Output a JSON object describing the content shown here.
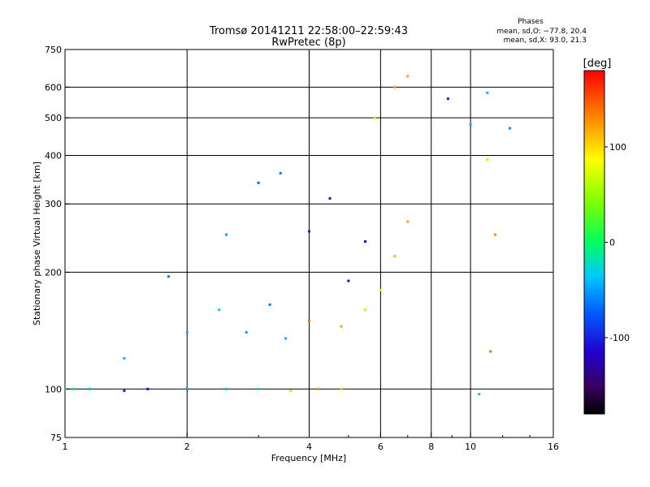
{
  "chart_data": {
    "type": "scatter",
    "title": "Tromsø 20141211 22:58:00–22:59:43",
    "subtitle": "RwPretec (8p)",
    "xlabel": "Frequency [MHz]",
    "ylabel": "Stationary phase Virtual Height [km]",
    "x_scale": "log",
    "y_scale": "log",
    "xlim": [
      1,
      16
    ],
    "ylim": [
      75,
      750
    ],
    "x_ticks": [
      1,
      2,
      4,
      6,
      8,
      10,
      16
    ],
    "y_ticks": [
      75,
      100,
      200,
      300,
      400,
      500,
      600,
      750
    ],
    "x_gridlines": [
      2,
      4,
      6,
      8,
      10
    ],
    "y_gridlines": [
      100,
      200,
      300,
      400,
      500,
      600
    ],
    "grid": true,
    "phase_stats": {
      "heading": "Phases",
      "line_o": "mean, sd,O: −77.8, 20.4",
      "line_x": "mean, sd,X:  93.0, 21.3"
    },
    "colorbar": {
      "label": "[deg]",
      "range": [
        -180,
        180
      ],
      "ticks": [
        100,
        0,
        -100
      ],
      "colormap": "rainbow"
    },
    "series": [
      {
        "values": [
          {
            "x": 1.0,
            "y": 100,
            "phase": -20
          },
          {
            "x": 1.05,
            "y": 100,
            "phase": -30
          },
          {
            "x": 1.15,
            "y": 100,
            "phase": -40
          },
          {
            "x": 1.4,
            "y": 99,
            "phase": -100
          },
          {
            "x": 1.6,
            "y": 100,
            "phase": -110
          },
          {
            "x": 2.0,
            "y": 100,
            "phase": -50
          },
          {
            "x": 2.5,
            "y": 100,
            "phase": -40
          },
          {
            "x": 3.0,
            "y": 100,
            "phase": -30
          },
          {
            "x": 3.6,
            "y": 99,
            "phase": 60
          },
          {
            "x": 4.2,
            "y": 100,
            "phase": 130
          },
          {
            "x": 4.8,
            "y": 100,
            "phase": 110
          },
          {
            "x": 1.4,
            "y": 120,
            "phase": -40
          },
          {
            "x": 1.8,
            "y": 195,
            "phase": -60
          },
          {
            "x": 2.0,
            "y": 140,
            "phase": -40
          },
          {
            "x": 2.4,
            "y": 160,
            "phase": -30
          },
          {
            "x": 2.8,
            "y": 140,
            "phase": -50
          },
          {
            "x": 3.2,
            "y": 165,
            "phase": -60
          },
          {
            "x": 3.5,
            "y": 135,
            "phase": -40
          },
          {
            "x": 2.5,
            "y": 250,
            "phase": -50
          },
          {
            "x": 3.0,
            "y": 340,
            "phase": -70
          },
          {
            "x": 3.4,
            "y": 360,
            "phase": -60
          },
          {
            "x": 4.0,
            "y": 255,
            "phase": -100
          },
          {
            "x": 4.5,
            "y": 310,
            "phase": -110
          },
          {
            "x": 5.0,
            "y": 190,
            "phase": -120
          },
          {
            "x": 5.5,
            "y": 240,
            "phase": -110
          },
          {
            "x": 4.0,
            "y": 150,
            "phase": 140
          },
          {
            "x": 4.8,
            "y": 145,
            "phase": 120
          },
          {
            "x": 5.5,
            "y": 160,
            "phase": 100
          },
          {
            "x": 6.0,
            "y": 180,
            "phase": 90
          },
          {
            "x": 6.5,
            "y": 220,
            "phase": 110
          },
          {
            "x": 7.0,
            "y": 270,
            "phase": 120
          },
          {
            "x": 5.8,
            "y": 500,
            "phase": 100
          },
          {
            "x": 6.5,
            "y": 600,
            "phase": 120
          },
          {
            "x": 7.0,
            "y": 640,
            "phase": 120
          },
          {
            "x": 8.8,
            "y": 560,
            "phase": -100
          },
          {
            "x": 10.0,
            "y": 480,
            "phase": -40
          },
          {
            "x": 11.0,
            "y": 580,
            "phase": -40
          },
          {
            "x": 11.0,
            "y": 390,
            "phase": 60
          },
          {
            "x": 11.5,
            "y": 250,
            "phase": 130
          },
          {
            "x": 11.2,
            "y": 125,
            "phase": 140
          },
          {
            "x": 12.5,
            "y": 470,
            "phase": -50
          },
          {
            "x": 10.5,
            "y": 97,
            "phase": -30
          }
        ]
      }
    ]
  }
}
